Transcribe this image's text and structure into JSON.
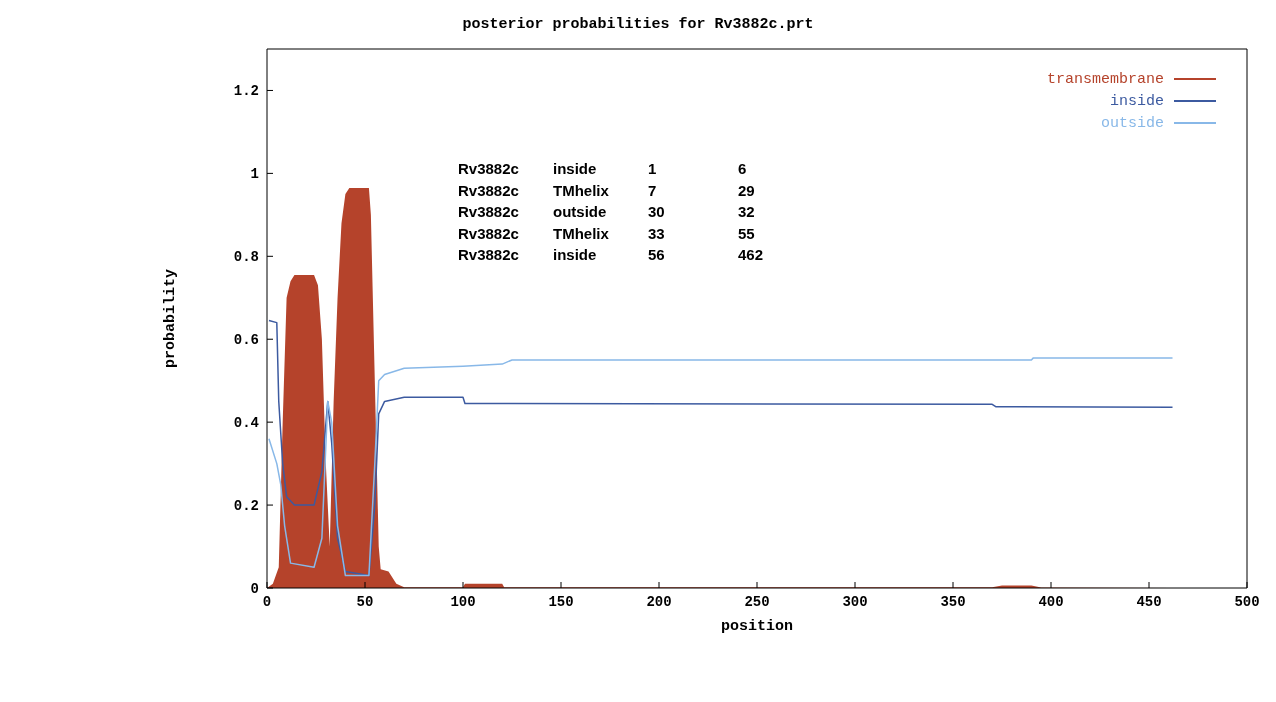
{
  "chart_data": {
    "type": "line",
    "title": "posterior probabilities for Rv3882c.prt",
    "xlabel": "position",
    "ylabel": "probability",
    "xlim": [
      0,
      500
    ],
    "xticks": [
      0,
      50,
      100,
      150,
      200,
      250,
      300,
      350,
      400,
      450,
      500
    ],
    "ylim": [
      0,
      1.3
    ],
    "yticks": [
      0,
      0.2,
      0.4,
      0.6,
      0.8,
      1,
      1.2
    ],
    "legend": "top right",
    "grid": false,
    "annotations": [
      "Rv3882c inside 1 6",
      "Rv3882c TMhelix 7 29",
      "Rv3882c outside 30 32",
      "Rv3882c TMhelix 33 55",
      "Rv3882c inside 56 462"
    ],
    "series": [
      {
        "name": "transmembrane",
        "type": "area",
        "color": "#b5432b",
        "x": [
          0,
          3,
          6,
          8,
          10,
          12,
          14,
          24,
          26,
          28,
          30,
          32,
          34,
          36,
          38,
          40,
          42,
          52,
          53,
          55,
          57,
          58,
          62,
          66,
          70,
          100,
          101,
          120,
          121,
          370,
          375,
          390,
          395,
          462
        ],
        "values": [
          0,
          0.01,
          0.05,
          0.4,
          0.7,
          0.74,
          0.755,
          0.755,
          0.73,
          0.6,
          0.3,
          0.1,
          0.45,
          0.7,
          0.88,
          0.95,
          0.965,
          0.965,
          0.9,
          0.5,
          0.1,
          0.045,
          0.04,
          0.01,
          0.002,
          0.002,
          0.01,
          0.01,
          0.002,
          0.002,
          0.006,
          0.006,
          0.001,
          0
        ]
      },
      {
        "name": "inside",
        "color": "#3c5aa0",
        "x": [
          1,
          5,
          6,
          8,
          10,
          14,
          24,
          28,
          31,
          33,
          36,
          40,
          52,
          55,
          57,
          60,
          70,
          100,
          101,
          370,
          372,
          462
        ],
        "values": [
          0.645,
          0.64,
          0.45,
          0.3,
          0.22,
          0.2,
          0.2,
          0.28,
          0.45,
          0.35,
          0.12,
          0.04,
          0.03,
          0.2,
          0.42,
          0.45,
          0.46,
          0.46,
          0.445,
          0.443,
          0.437,
          0.436
        ]
      },
      {
        "name": "outside",
        "color": "#88b8e8",
        "x": [
          1,
          5,
          7,
          9,
          12,
          24,
          28,
          31,
          33,
          36,
          40,
          52,
          55,
          57,
          60,
          70,
          100,
          120,
          125,
          390,
          391,
          462
        ],
        "values": [
          0.36,
          0.3,
          0.25,
          0.15,
          0.06,
          0.05,
          0.12,
          0.45,
          0.4,
          0.15,
          0.03,
          0.03,
          0.3,
          0.5,
          0.515,
          0.53,
          0.535,
          0.54,
          0.55,
          0.55,
          0.555,
          0.555
        ]
      }
    ]
  }
}
